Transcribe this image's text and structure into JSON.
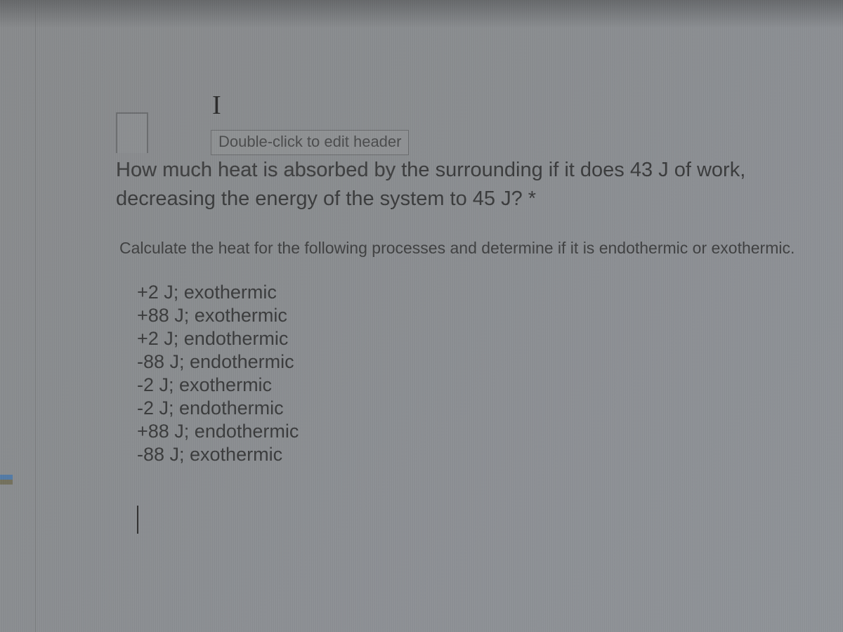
{
  "header": {
    "hint": "Double-click to edit header"
  },
  "question": {
    "line1_lead": "How much heat is absorbed by ",
    "line1_rest": "the surrounding if it does 43 J of work,",
    "line2": "decreasing the energy of the system to 45 J? *"
  },
  "instruction": "Calculate the heat for the following processes and determine if it is endothermic or exothermic.",
  "options": [
    "+2 J; exothermic",
    "+88 J; exothermic",
    "+2 J; endothermic",
    "-88 J; endothermic",
    "-2 J; exothermic",
    "-2 J; endothermic",
    "+88 J; endothermic",
    "-88 J; exothermic"
  ],
  "cursor_char": "I",
  "colors": {
    "text": "#3a3b3c",
    "header_border": "#6a6c6e",
    "background_from": "#888a8c",
    "background_to": "#8f9398"
  }
}
